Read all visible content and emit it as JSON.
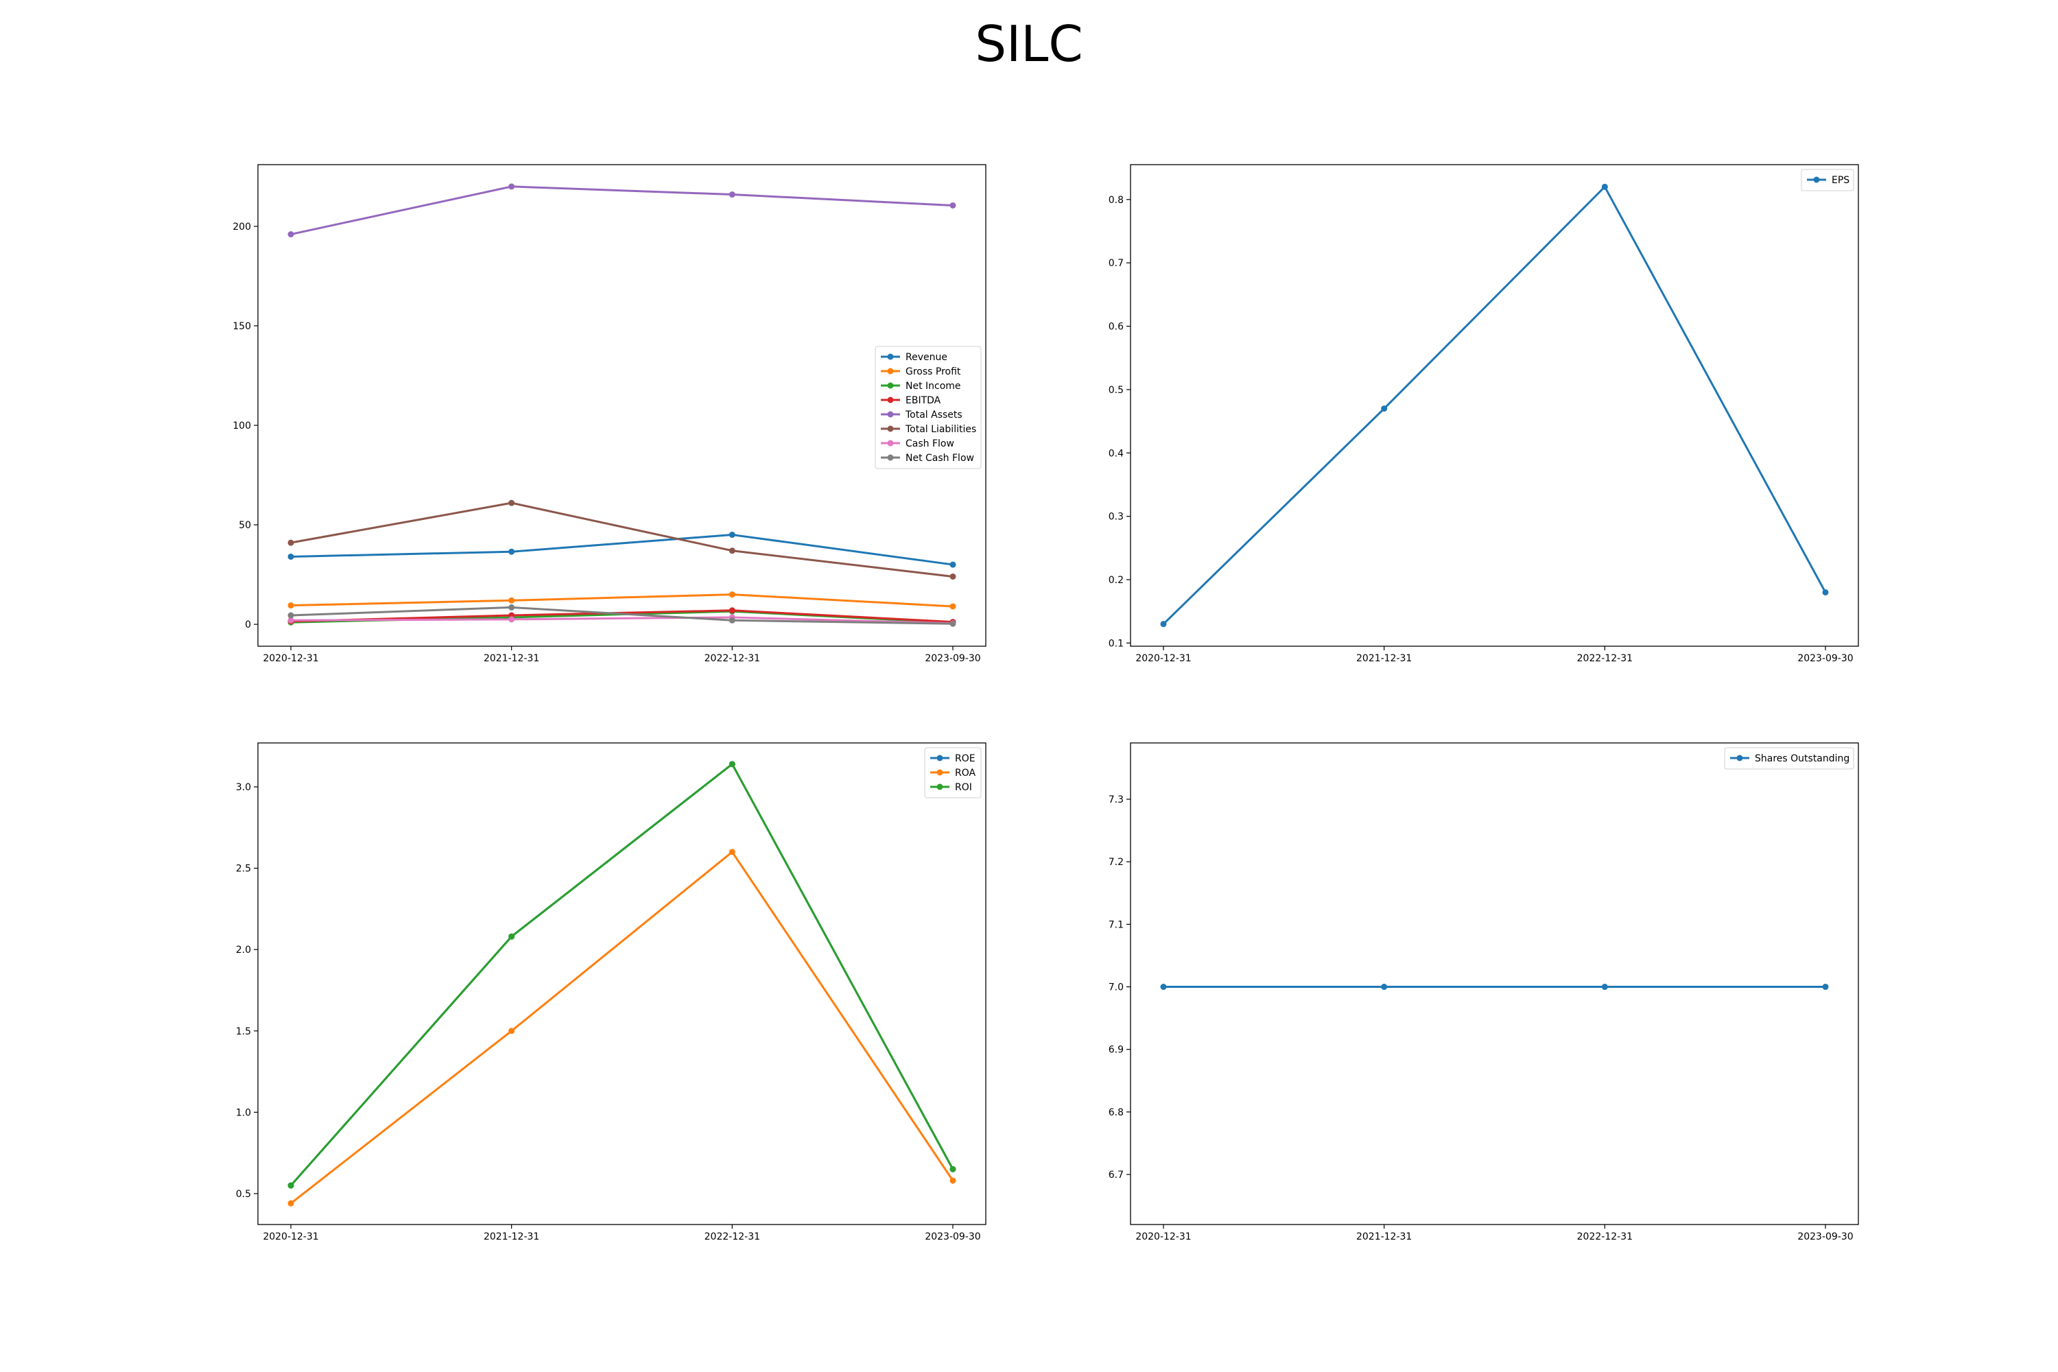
{
  "figure": {
    "title": "SILC"
  },
  "chart_data": [
    {
      "type": "line",
      "categories": [
        "2020-12-31",
        "2021-12-31",
        "2022-12-31",
        "2023-09-30"
      ],
      "ylim": [
        -11,
        231
      ],
      "yticks": [
        0,
        50,
        100,
        150,
        200
      ],
      "ytick_labels": [
        "0",
        "50",
        "100",
        "150",
        "200"
      ],
      "legend": "center-right",
      "grid": false,
      "series": [
        {
          "name": "Revenue",
          "color": "#1f77b4",
          "values": [
            34.0,
            36.5,
            45.0,
            30.0
          ]
        },
        {
          "name": "Gross Profit",
          "color": "#ff7f0e",
          "values": [
            9.5,
            12.0,
            15.0,
            9.0
          ]
        },
        {
          "name": "Net Income",
          "color": "#2ca02c",
          "values": [
            1.0,
            3.5,
            6.5,
            0.8
          ]
        },
        {
          "name": "EBITDA",
          "color": "#d62728",
          "values": [
            1.5,
            4.5,
            7.0,
            1.2
          ]
        },
        {
          "name": "Total Assets",
          "color": "#9467bd",
          "values": [
            196.0,
            220.0,
            216.0,
            210.5
          ]
        },
        {
          "name": "Total Liabilities",
          "color": "#8c564b",
          "values": [
            41.0,
            61.0,
            37.0,
            24.0
          ]
        },
        {
          "name": "Cash Flow",
          "color": "#e377c2",
          "values": [
            2.0,
            2.5,
            3.5,
            0.5
          ]
        },
        {
          "name": "Net Cash Flow",
          "color": "#7f7f7f",
          "values": [
            4.5,
            8.5,
            2.0,
            0.3
          ]
        }
      ]
    },
    {
      "type": "line",
      "categories": [
        "2020-12-31",
        "2021-12-31",
        "2022-12-31",
        "2023-09-30"
      ],
      "ylim": [
        0.095,
        0.855
      ],
      "yticks": [
        0.1,
        0.2,
        0.3,
        0.4,
        0.5,
        0.6,
        0.7,
        0.8
      ],
      "ytick_labels": [
        "0.1",
        "0.2",
        "0.3",
        "0.4",
        "0.5",
        "0.6",
        "0.7",
        "0.8"
      ],
      "legend": "top-right",
      "grid": false,
      "series": [
        {
          "name": "EPS",
          "color": "#1f77b4",
          "values": [
            0.13,
            0.47,
            0.82,
            0.18
          ]
        }
      ]
    },
    {
      "type": "line",
      "categories": [
        "2020-12-31",
        "2021-12-31",
        "2022-12-31",
        "2023-09-30"
      ],
      "ylim": [
        0.31,
        3.27
      ],
      "yticks": [
        0.5,
        1.0,
        1.5,
        2.0,
        2.5,
        3.0
      ],
      "ytick_labels": [
        "0.5",
        "1.0",
        "1.5",
        "2.0",
        "2.5",
        "3.0"
      ],
      "legend": "top-right",
      "grid": false,
      "series": [
        {
          "name": "ROE",
          "color": "#1f77b4",
          "values": [
            0.55,
            2.08,
            3.14,
            0.65
          ]
        },
        {
          "name": "ROA",
          "color": "#ff7f0e",
          "values": [
            0.44,
            1.5,
            2.6,
            0.58
          ]
        },
        {
          "name": "ROI",
          "color": "#2ca02c",
          "values": [
            0.55,
            2.08,
            3.14,
            0.65
          ]
        }
      ]
    },
    {
      "type": "line",
      "categories": [
        "2020-12-31",
        "2021-12-31",
        "2022-12-31",
        "2023-09-30"
      ],
      "ylim": [
        6.62,
        7.39
      ],
      "yticks": [
        6.7,
        6.8,
        6.9,
        7.0,
        7.1,
        7.2,
        7.3
      ],
      "ytick_labels": [
        "6.7",
        "6.8",
        "6.9",
        "7.0",
        "7.1",
        "7.2",
        "7.3"
      ],
      "legend": "top-right",
      "grid": false,
      "series": [
        {
          "name": "Shares Outstanding",
          "color": "#1f77b4",
          "values": [
            7.0,
            7.0,
            7.0,
            7.0
          ]
        }
      ]
    }
  ]
}
